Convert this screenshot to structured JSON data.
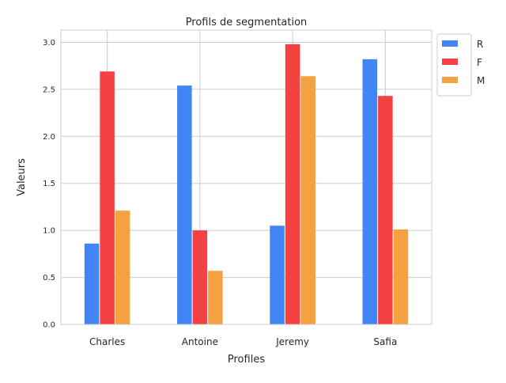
{
  "chart_data": {
    "type": "bar",
    "title": "Profils de segmentation",
    "xlabel": "Profiles",
    "ylabel": "Valeurs",
    "categories": [
      "Charles",
      "Antoine",
      "Jeremy",
      "Safia"
    ],
    "series": [
      {
        "name": "R",
        "color": "#4285F4",
        "values": [
          0.86,
          2.54,
          1.05,
          2.82
        ]
      },
      {
        "name": "F",
        "color": "#F44242",
        "values": [
          2.69,
          1.0,
          2.98,
          2.43
        ]
      },
      {
        "name": "M",
        "color": "#F4A142",
        "values": [
          1.21,
          0.57,
          2.64,
          1.01
        ]
      }
    ],
    "ylim": [
      0,
      3.13
    ],
    "yticks": [
      "0.0",
      "0.5",
      "1.0",
      "1.5",
      "2.0",
      "2.5",
      "3.0"
    ],
    "grid": true,
    "legend_position": "outside-top-right"
  }
}
